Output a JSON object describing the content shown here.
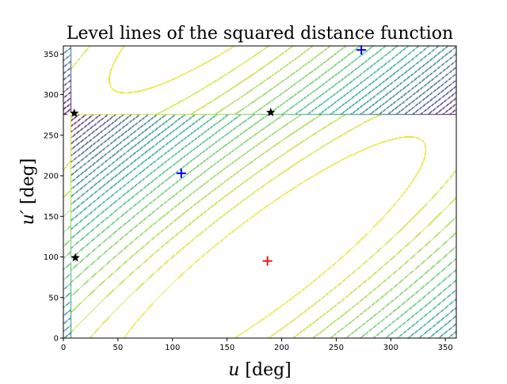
{
  "chart_data": {
    "type": "contour",
    "title": "Level lines of the squared distance function",
    "xlabel_symbol": "u",
    "ylabel_symbol": "u′",
    "unit": "[deg]",
    "xlim": [
      0,
      360
    ],
    "ylim": [
      0,
      360
    ],
    "xticks": [
      0,
      50,
      100,
      150,
      200,
      250,
      300,
      350
    ],
    "yticks": [
      0,
      50,
      100,
      150,
      200,
      250,
      300,
      350
    ],
    "colormap": [
      "#440154",
      "#482475",
      "#414487",
      "#355f8d",
      "#2a788e",
      "#21918c",
      "#22a884",
      "#44bf70",
      "#7ad151",
      "#bddf26",
      "#fde725"
    ],
    "function": {
      "min_point": [
        187,
        95
      ],
      "a_uu": 1.0,
      "a_vv": 0.9,
      "a_uv": -1.7,
      "period": 360
    },
    "markers": [
      {
        "type": "plus",
        "color": "#e41a1c",
        "u": 187,
        "v": 95
      },
      {
        "type": "plus",
        "color": "#0000ff",
        "u": 108,
        "v": 203
      },
      {
        "type": "plus",
        "color": "#0000ff",
        "u": 273,
        "v": 355
      },
      {
        "type": "star",
        "color": "#000000",
        "u": 10,
        "v": 277
      },
      {
        "type": "star",
        "color": "#000000",
        "u": 190,
        "v": 278
      },
      {
        "type": "star",
        "color": "#000000",
        "u": 11,
        "v": 99
      }
    ]
  }
}
